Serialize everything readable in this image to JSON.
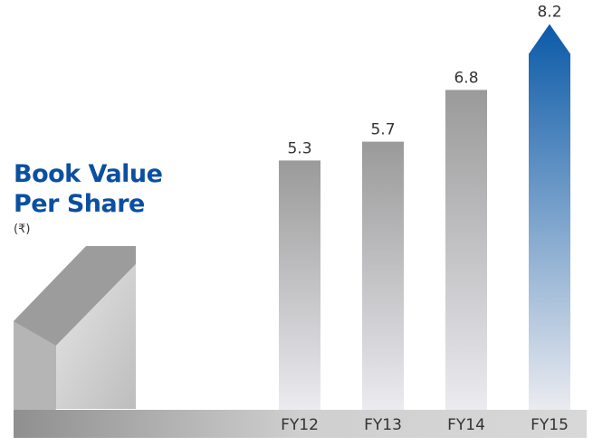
{
  "chart_data": {
    "type": "bar",
    "title": "Book Value Per Share",
    "subtitle": "(₹)",
    "categories": [
      "FY12",
      "FY13",
      "FY14",
      "FY15"
    ],
    "values": [
      5.3,
      5.7,
      6.8,
      8.2
    ],
    "colors": [
      "#9a9a9a",
      "#9a9a9a",
      "#9a9a9a",
      "#0b5aa8"
    ]
  }
}
